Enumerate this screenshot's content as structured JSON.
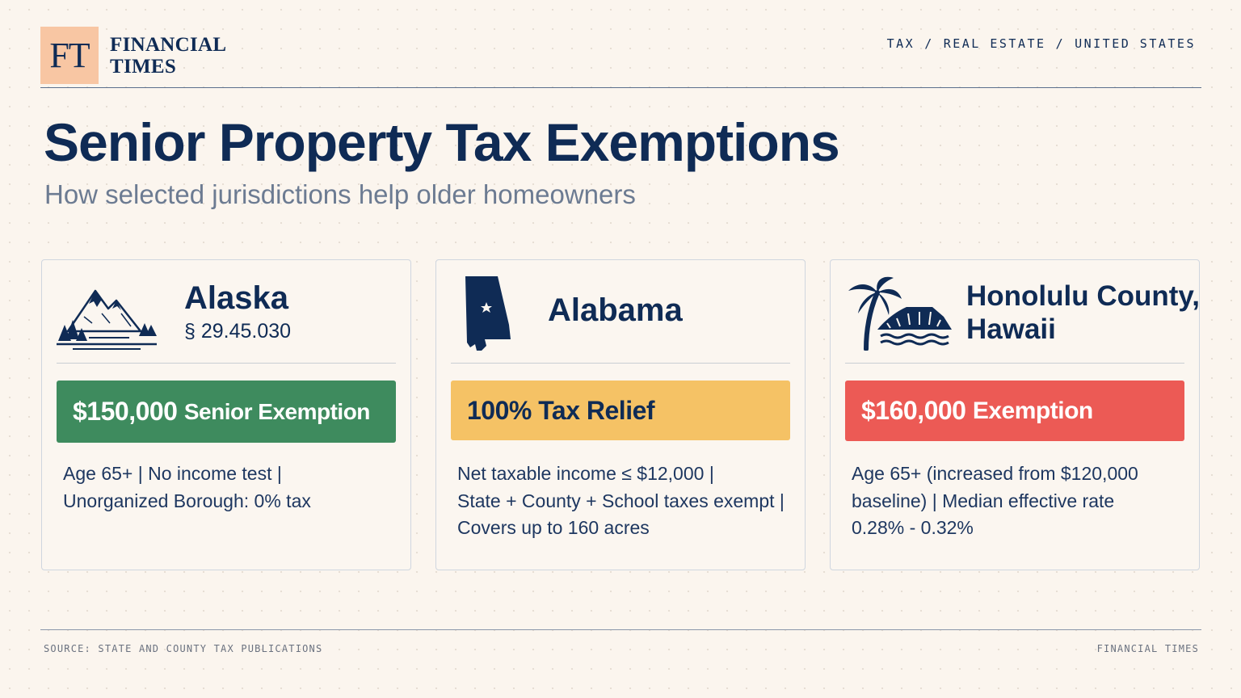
{
  "brand": {
    "logo_letters": "FT",
    "name_line1": "FINANCIAL",
    "name_line2": "TIMES",
    "logo_color": "#f8c6a3"
  },
  "breadcrumb": {
    "items": [
      "TAX",
      "REAL ESTATE",
      "UNITED STATES"
    ],
    "separator": "/"
  },
  "header": {
    "title": "Senior Property Tax Exemptions",
    "subtitle": "How selected jurisdictions help older homeowners"
  },
  "cards": [
    {
      "icon": "mountains-icon",
      "name": "Alaska",
      "code": "§ 29.45.030",
      "banner": {
        "amount": "$150,000",
        "label": "Senior Exemption",
        "color": "#3e8b5e",
        "text_color": "#ffffff"
      },
      "lines": [
        "Age 65+ | No income test |",
        "Unorganized Borough: 0% tax"
      ]
    },
    {
      "icon": "alabama-state-icon",
      "name": "Alabama",
      "code": "",
      "banner": {
        "amount": "100%",
        "label": "Tax Relief",
        "color": "#f5c265",
        "text_color": "#0f2b55"
      },
      "lines": [
        "Net taxable income ≤ $12,000 |",
        "State + County + School taxes exempt |",
        "Covers up to 160 acres"
      ]
    },
    {
      "icon": "palm-tree-diamond-head-icon",
      "name": "Honolulu County, Hawaii",
      "name_line1": "Honolulu County,",
      "name_line2": "Hawaii",
      "code": "",
      "banner": {
        "amount": "$160,000",
        "label": "Exemption",
        "color": "#ec5a55",
        "text_color": "#ffffff"
      },
      "lines": [
        "Age 65+ (increased from $120,000",
        "baseline) | Median effective rate",
        "0.28% - 0.32%"
      ]
    }
  ],
  "footer": {
    "source": "SOURCE: STATE AND COUNTY TAX PUBLICATIONS",
    "brand": "FINANCIAL TIMES"
  }
}
